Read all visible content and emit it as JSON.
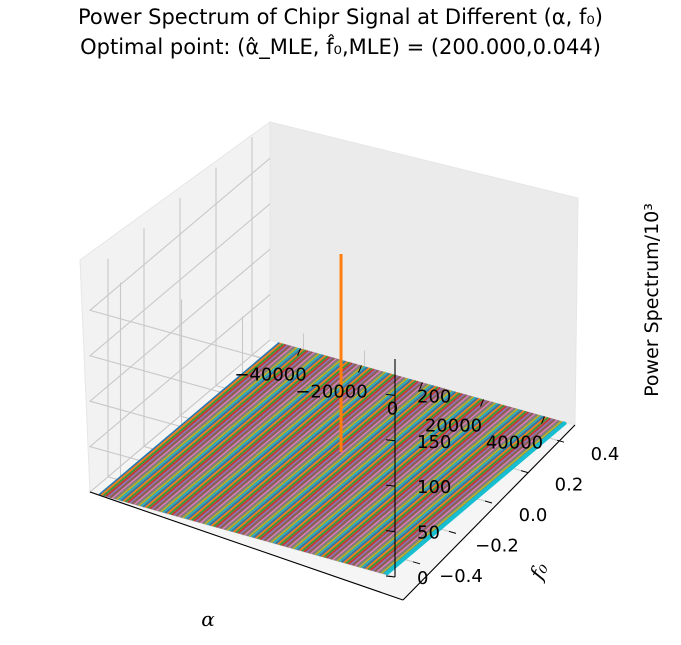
{
  "title": {
    "line1": "Power Spectrum of Chipr Signal at Different (α, f₀)",
    "line2": "Optimal point: (α̂_MLE, f̂₀,MLE) = (200.000,0.044)"
  },
  "chart_data": {
    "type": "surface-3d",
    "title": "Power Spectrum of Chipr Signal at Different (α, f₀)",
    "subtitle": "Optimal point: (α̂_MLE, f̂₀,MLE) = (200.000,0.044)",
    "xlabel": "α",
    "ylabel": "f₀",
    "zlabel": "Power Spectrum/10³",
    "xlim": [
      -50000,
      50000
    ],
    "ylim": [
      -0.5,
      0.5
    ],
    "zlim": [
      0,
      240
    ],
    "x_ticks": [
      -40000,
      -20000,
      0,
      20000,
      40000
    ],
    "x_tick_labels": [
      "−40000",
      "−20000",
      "0",
      "20000",
      "40000"
    ],
    "y_ticks": [
      -0.4,
      -0.2,
      0.0,
      0.2,
      0.4
    ],
    "y_tick_labels": [
      "−0.4",
      "−0.2",
      "0.0",
      "0.2",
      "0.4"
    ],
    "z_ticks": [
      0,
      50,
      100,
      150,
      200
    ],
    "z_tick_labels": [
      "0",
      "50",
      "100",
      "150",
      "200"
    ],
    "grid": true,
    "series": [
      {
        "kind": "flat-surface",
        "z": 0,
        "colors": [
          "#1f77b4",
          "#ff7f0e",
          "#2ca02c",
          "#d62728",
          "#9467bd",
          "#8c564b",
          "#e377c2",
          "#7f7f7f",
          "#bcbd22",
          "#17becf"
        ]
      },
      {
        "kind": "peak",
        "x": 200,
        "y": 0.044,
        "z": 218,
        "color": "#ff7f0e"
      }
    ]
  }
}
